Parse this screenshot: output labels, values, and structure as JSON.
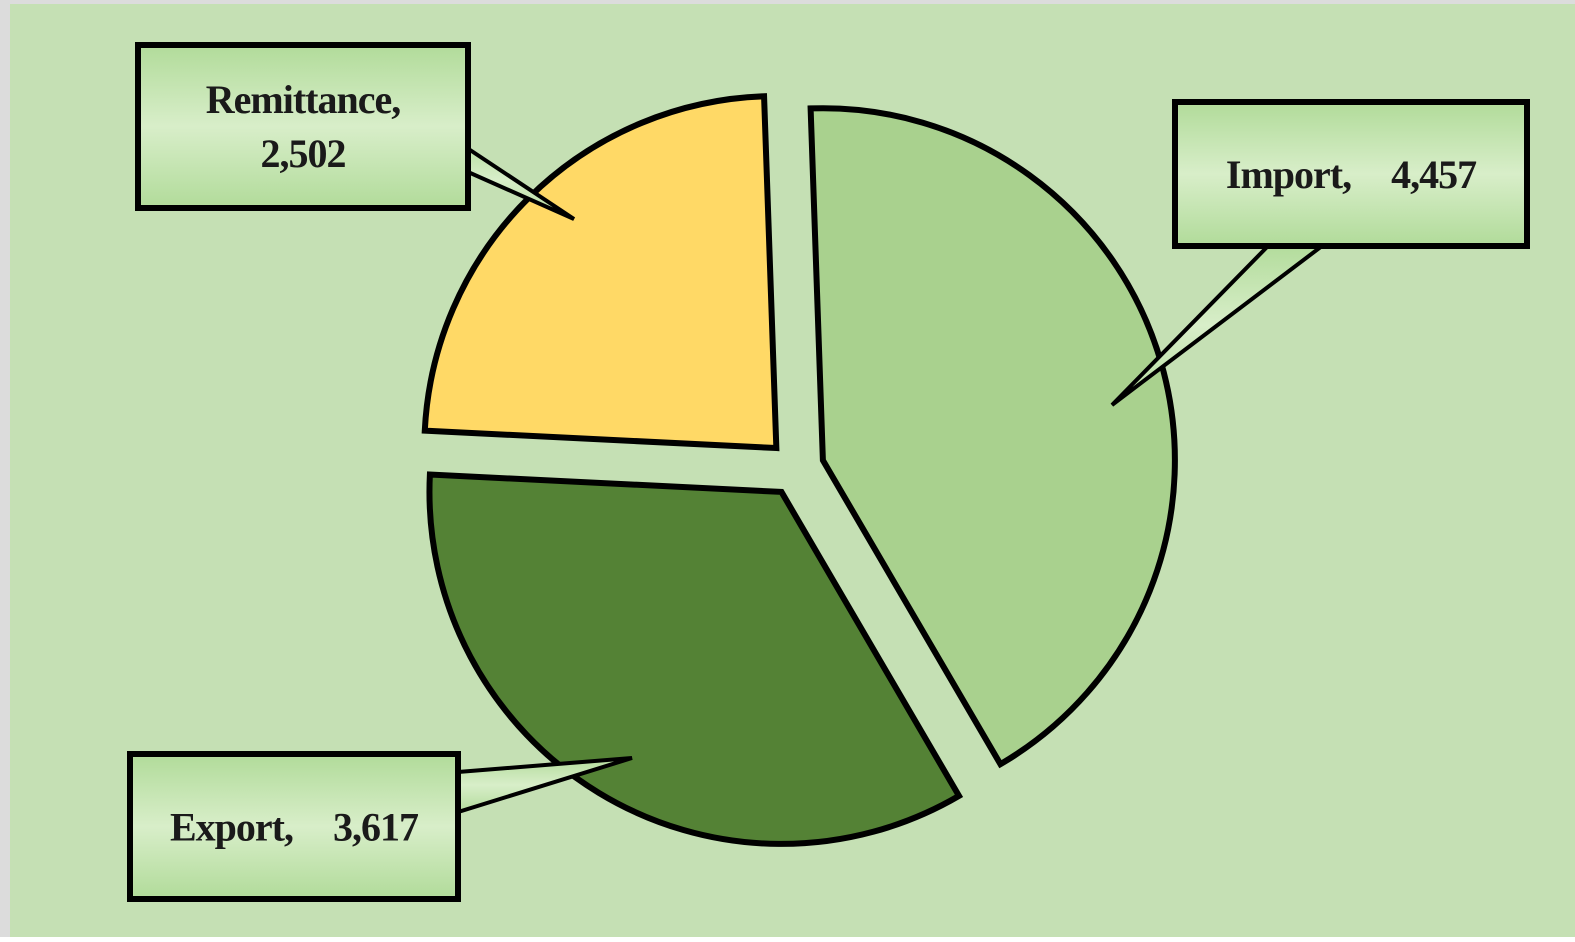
{
  "chart_data": {
    "type": "pie",
    "title": "",
    "slices": [
      {
        "category": "Import",
        "value": 4457,
        "value_label": "4,457",
        "color": "#a9d18e"
      },
      {
        "category": "Export",
        "value": 3617,
        "value_label": "3,617",
        "color": "#548235"
      },
      {
        "category": "Remittance",
        "value": 2502,
        "value_label": "2,502",
        "color": "#ffd966"
      }
    ],
    "exploded": true,
    "legend": "none",
    "data_labels": "callouts"
  },
  "style": {
    "background": "#c5e0b4",
    "frame": "#dcdcdc",
    "callout_fill": "#b3dc9c",
    "callout_fill_light": "#d8eec9"
  }
}
